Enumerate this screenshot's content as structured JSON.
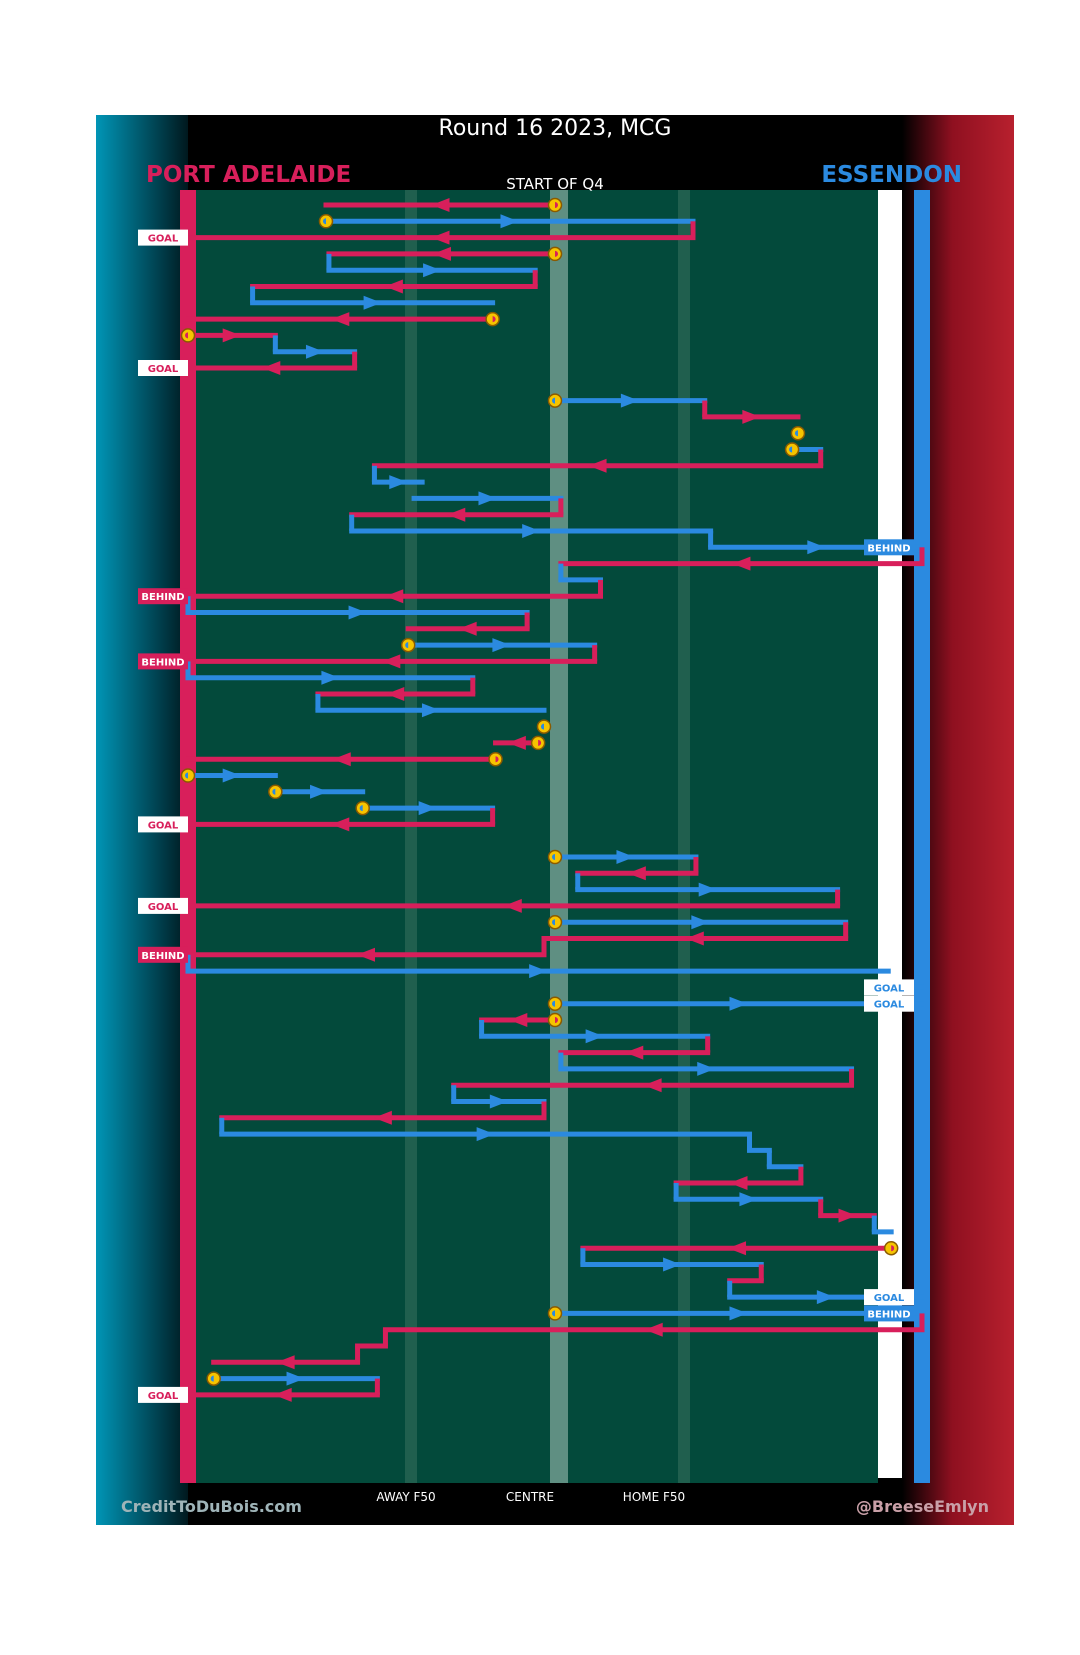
{
  "title": "Round 16 2023, MCG",
  "quarter_label": "START OF Q4",
  "credits": {
    "left": "CreditToDuBois.com",
    "right": "@BreeseEmlyn"
  },
  "teams": {
    "home": {
      "name": "PORT ADELAIDE",
      "color": "#d81f5b"
    },
    "away": {
      "name": "ESSENDON",
      "color": "#2b8ae0"
    }
  },
  "chart_data": {
    "type": "line",
    "title": "Round 16 2023, MCG",
    "subtitle": "START OF Q4",
    "x_axis": {
      "range": [
        0,
        100
      ],
      "description": "ground position, Port Adelaide goal (0) to Essendon goal (100)",
      "ticks": [
        {
          "label": "AWAY F50",
          "value": 30
        },
        {
          "label": "CENTRE",
          "value": 50
        },
        {
          "label": "HOME F50",
          "value": 70
        }
      ]
    },
    "y_axis": {
      "range": [
        0,
        76
      ],
      "description": "sequence step (time, top to bottom)"
    },
    "legend": [
      "PORT ADELAIDE",
      "ESSENDON"
    ],
    "team_colors": {
      "P": "#d81f5b",
      "E": "#2b8ae0"
    },
    "marks": {
      "stoppage_fill": "#f6c400",
      "stoppage_edge": "#8a5a00"
    },
    "segments": [
      {
        "t": 0,
        "team": "P",
        "from": 50,
        "to": 18.8,
        "start": "stoppage"
      },
      {
        "t": 1,
        "team": "E",
        "from": 18.8,
        "to": 68.8,
        "start": "stoppage"
      },
      {
        "t": 2,
        "team": "P",
        "from": 68.8,
        "to": 0,
        "end": "GOAL"
      },
      {
        "t": 3,
        "team": "P",
        "from": 50,
        "to": 19.2,
        "start": "stoppage"
      },
      {
        "t": 4,
        "team": "E",
        "from": 19.2,
        "to": 47.3
      },
      {
        "t": 5,
        "team": "P",
        "from": 47.3,
        "to": 8.8
      },
      {
        "t": 6,
        "team": "E",
        "from": 8.8,
        "to": 41.5
      },
      {
        "t": 7,
        "team": "P",
        "from": 41.5,
        "to": 0,
        "start": "stoppage"
      },
      {
        "t": 8,
        "team": "P",
        "from": 0,
        "to": 11.9,
        "start": "stoppage"
      },
      {
        "t": 9,
        "team": "E",
        "from": 11.9,
        "to": 22.7
      },
      {
        "t": 10,
        "team": "P",
        "from": 22.7,
        "to": 0,
        "end": "GOAL"
      },
      {
        "t": 12,
        "team": "E",
        "from": 50,
        "to": 70.4,
        "start": "stoppage"
      },
      {
        "t": 13,
        "team": "P",
        "from": 70.4,
        "to": 83.1
      },
      {
        "t": 14,
        "team": "E",
        "from": 83.1,
        "to": 83.1,
        "start": "stoppage"
      },
      {
        "t": 15,
        "team": "E",
        "from": 82.3,
        "to": 86.2,
        "start": "stoppage"
      },
      {
        "t": 16,
        "team": "P",
        "from": 86.2,
        "to": 25.4
      },
      {
        "t": 17,
        "team": "E",
        "from": 25.4,
        "to": 31.9
      },
      {
        "t": 18,
        "team": "E",
        "from": 30.8,
        "to": 50.8
      },
      {
        "t": 19,
        "team": "P",
        "from": 50.8,
        "to": 22.3
      },
      {
        "t": 20,
        "team": "E",
        "from": 22.3,
        "to": 71.2
      },
      {
        "t": 21,
        "team": "E",
        "from": 71.2,
        "to": 100,
        "end": "BEHIND"
      },
      {
        "t": 22,
        "team": "P",
        "from": 100,
        "to": 50.8
      },
      {
        "t": 23,
        "team": "E",
        "from": 50.8,
        "to": 56.2
      },
      {
        "t": 24,
        "team": "P",
        "from": 56.2,
        "to": 0,
        "end": "BEHIND"
      },
      {
        "t": 25,
        "team": "E",
        "from": 0,
        "to": 46.2
      },
      {
        "t": 26,
        "team": "P",
        "from": 46.2,
        "to": 30
      },
      {
        "t": 27,
        "team": "E",
        "from": 30,
        "to": 55.4,
        "start": "stoppage"
      },
      {
        "t": 28,
        "team": "P",
        "from": 55.4,
        "to": 0,
        "end": "BEHIND"
      },
      {
        "t": 29,
        "team": "E",
        "from": 0,
        "to": 38.8
      },
      {
        "t": 30,
        "team": "P",
        "from": 38.8,
        "to": 17.7
      },
      {
        "t": 31,
        "team": "E",
        "from": 17.7,
        "to": 48.5
      },
      {
        "t": 32,
        "team": "E",
        "from": 48.5,
        "to": 48.5,
        "start": "stoppage"
      },
      {
        "t": 33,
        "team": "P",
        "from": 47.7,
        "to": 41.9,
        "start": "stoppage"
      },
      {
        "t": 34,
        "team": "P",
        "from": 41.9,
        "to": 0,
        "start": "stoppage"
      },
      {
        "t": 35,
        "team": "E",
        "from": 0,
        "to": 11.9,
        "start": "stoppage"
      },
      {
        "t": 36,
        "team": "E",
        "from": 11.9,
        "to": 23.8,
        "start": "stoppage"
      },
      {
        "t": 37,
        "team": "E",
        "from": 23.8,
        "to": 41.5,
        "start": "stoppage"
      },
      {
        "t": 38,
        "team": "P",
        "from": 41.5,
        "to": 0,
        "end": "GOAL"
      },
      {
        "t": 40,
        "team": "E",
        "from": 50,
        "to": 69.2,
        "start": "stoppage"
      },
      {
        "t": 41,
        "team": "P",
        "from": 69.2,
        "to": 53.1
      },
      {
        "t": 42,
        "team": "E",
        "from": 53.1,
        "to": 88.5
      },
      {
        "t": 43,
        "team": "P",
        "from": 88.5,
        "to": 0,
        "end": "GOAL"
      },
      {
        "t": 44,
        "team": "E",
        "from": 50,
        "to": 89.6,
        "start": "stoppage"
      },
      {
        "t": 45,
        "team": "P",
        "from": 89.6,
        "to": 48.5
      },
      {
        "t": 46,
        "team": "P",
        "from": 48.5,
        "to": 0,
        "end": "BEHIND"
      },
      {
        "t": 47,
        "team": "E",
        "from": 0,
        "to": 95.4
      },
      {
        "t": 48,
        "team": "E",
        "from": 95.4,
        "to": 100,
        "start": "stoppage",
        "end": "GOAL"
      },
      {
        "t": 49,
        "team": "E",
        "from": 50,
        "to": 100,
        "start": "stoppage",
        "end": "GOAL"
      },
      {
        "t": 50,
        "team": "P",
        "from": 50,
        "to": 40,
        "start": "stoppage"
      },
      {
        "t": 51,
        "team": "E",
        "from": 40,
        "to": 70.8
      },
      {
        "t": 52,
        "team": "P",
        "from": 70.8,
        "to": 50.8
      },
      {
        "t": 53,
        "team": "E",
        "from": 50.8,
        "to": 90.4
      },
      {
        "t": 54,
        "team": "P",
        "from": 90.4,
        "to": 36.2
      },
      {
        "t": 55,
        "team": "E",
        "from": 36.2,
        "to": 48.5
      },
      {
        "t": 56,
        "team": "P",
        "from": 48.5,
        "to": 4.6
      },
      {
        "t": 57,
        "team": "E",
        "from": 4.6,
        "to": 76.5
      },
      {
        "t": 58,
        "team": "E",
        "from": 76.5,
        "to": 79.2
      },
      {
        "t": 59,
        "team": "E",
        "from": 79.2,
        "to": 83.5
      },
      {
        "t": 60,
        "team": "P",
        "from": 83.5,
        "to": 66.5
      },
      {
        "t": 61,
        "team": "E",
        "from": 66.5,
        "to": 86.2
      },
      {
        "t": 62,
        "team": "P",
        "from": 86.2,
        "to": 93.5
      },
      {
        "t": 63,
        "team": "E",
        "from": 93.5,
        "to": 95.8
      },
      {
        "t": 64,
        "team": "P",
        "from": 95.8,
        "to": 53.8,
        "start": "stoppage"
      },
      {
        "t": 65,
        "team": "E",
        "from": 53.8,
        "to": 78.1
      },
      {
        "t": 66,
        "team": "P",
        "from": 78.1,
        "to": 73.8
      },
      {
        "t": 67,
        "team": "E",
        "from": 73.8,
        "to": 100,
        "end": "GOAL"
      },
      {
        "t": 68,
        "team": "E",
        "from": 50,
        "to": 100,
        "start": "stoppage",
        "end": "BEHIND"
      },
      {
        "t": 69,
        "team": "P",
        "from": 100,
        "to": 26.9
      },
      {
        "t": 70,
        "team": "P",
        "from": 26.9,
        "to": 23.1
      },
      {
        "t": 71,
        "team": "P",
        "from": 23.1,
        "to": 3.5
      },
      {
        "t": 72,
        "team": "E",
        "from": 3.5,
        "to": 25.8,
        "start": "stoppage"
      },
      {
        "t": 73,
        "team": "P",
        "from": 25.8,
        "to": 0,
        "end": "GOAL"
      }
    ]
  }
}
